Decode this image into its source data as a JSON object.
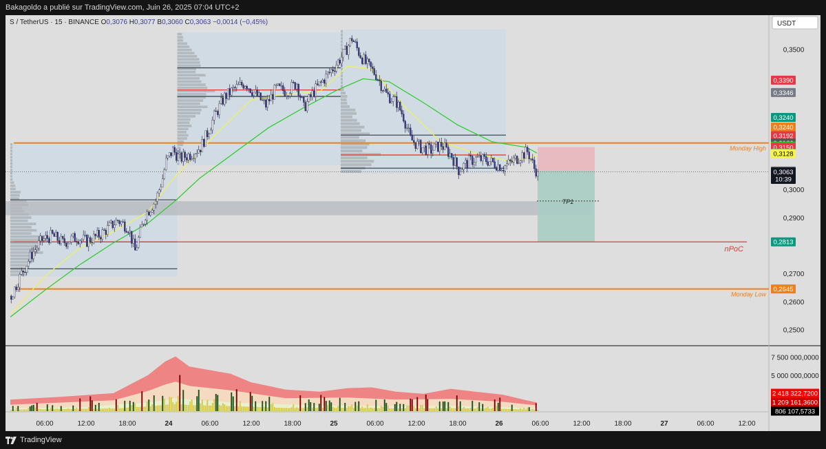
{
  "header": {
    "publisher_line": "Bakagoldo a publié sur TradingView.com, Juin 26, 2025 07:04 UTC+2"
  },
  "footer": {
    "brand": "TradingView"
  },
  "colors": {
    "background": "#dedede",
    "dark": "#141414",
    "orange": "#ef7f1a",
    "red": "#e53935",
    "green_line": "#33cc33",
    "yellow_line": "#f0ef66",
    "profile_box": "#cfdae3",
    "stop_zone": "#e9b7bd",
    "target_zone": "#a9cdc3"
  },
  "chart_data": {
    "type": "candlestick",
    "symbol_line": {
      "symbol": "S / TetherUS · 15 · BINANCE",
      "o_label": "O",
      "o_value": "0,3076",
      "h_label": "H",
      "h_value": "0,3077",
      "b_label": "B",
      "b_value": "0,3060",
      "c_label": "C",
      "c_value": "0,3063",
      "change": "−0,0014 (−0,45%)"
    },
    "currency_button": "USDT",
    "y_axis": {
      "ylim": [
        0.2445,
        0.3622
      ],
      "ticks": [
        {
          "value": 0.35,
          "label": "0,3500"
        },
        {
          "value": 0.3,
          "label": "0,3000"
        },
        {
          "value": 0.29,
          "label": "0,2900"
        },
        {
          "value": 0.27,
          "label": "0,2700"
        },
        {
          "value": 0.26,
          "label": "0,2600"
        },
        {
          "value": 0.25,
          "label": "0,2500"
        }
      ]
    },
    "price_labels": [
      {
        "value": 0.339,
        "label": "0,3390",
        "color": "#e53945"
      },
      {
        "value": 0.3346,
        "label": "0,3346",
        "color": "#787b86"
      },
      {
        "value": 0.324,
        "label": "0,3240",
        "color": "#089981",
        "offset": -7
      },
      {
        "value": 0.324,
        "label": "0,3240",
        "color": "#ef7f1a",
        "offset": 7
      },
      {
        "value": 0.3192,
        "label": "0,3192",
        "color": "#e53945"
      },
      {
        "value": 0.3166,
        "label": "0,3166",
        "color": "#555555"
      },
      {
        "value": 0.3155,
        "label": "0,3155",
        "color": "#22c322"
      },
      {
        "value": 0.315,
        "label": "0,3150",
        "color": "#e53945"
      },
      {
        "value": 0.3129,
        "label": "0,3129",
        "color": "#089981"
      },
      {
        "value": 0.3128,
        "label": "0,3128",
        "color": "#f5f542",
        "text_color": "#000000"
      },
      {
        "value": 0.3066,
        "label": "0,3066",
        "color": "#787b86"
      },
      {
        "value": 0.3063,
        "label": "0,3063",
        "color": "#131722",
        "countdown": "10:39"
      },
      {
        "value": 0.2813,
        "label": "0,2813",
        "color": "#089981"
      },
      {
        "value": 0.2645,
        "label": "0,2645",
        "color": "#ef7f1a"
      }
    ],
    "levels": [
      {
        "name": "Monday  High",
        "value": 0.3166,
        "color": "#ef7f1a"
      },
      {
        "name": "nPoC",
        "value": 0.2813,
        "color": "#e53935"
      },
      {
        "name": "Monday Low",
        "value": 0.2645,
        "color": "#ef7f1a"
      }
    ],
    "trade": {
      "entry": 0.3066,
      "stop": 0.3151,
      "target": 0.2813,
      "tp_label": "TP1",
      "tp_value": 0.2959
    },
    "support_zone": [
      0.2908,
      0.2958
    ],
    "profiles": [
      {
        "start": 0,
        "end": 97,
        "top": 0.3166,
        "bottom": 0.269,
        "vah": 0.2963,
        "poc": 0.2813,
        "val": 0.2717
      },
      {
        "start": 97,
        "end": 192,
        "top": 0.356,
        "bottom": 0.3086,
        "vah": 0.3434,
        "poc": 0.3355,
        "val": 0.3332
      },
      {
        "start": 192,
        "end": 288,
        "top": 0.357,
        "bottom": 0.3058,
        "vah": 0.3194,
        "poc": 0.3123,
        "val": 0.3076
      }
    ],
    "x_axis": {
      "range": [
        "2025-06-23T00:00",
        "2025-06-27T14:00"
      ],
      "ticks": [
        {
          "bar": 20,
          "label": "06:00"
        },
        {
          "bar": 44,
          "label": "12:00"
        },
        {
          "bar": 68,
          "label": "18:00"
        },
        {
          "bar": 92,
          "label": "24"
        },
        {
          "bar": 116,
          "label": "06:00"
        },
        {
          "bar": 140,
          "label": "12:00"
        },
        {
          "bar": 164,
          "label": "18:00"
        },
        {
          "bar": 188,
          "label": "25"
        },
        {
          "bar": 212,
          "label": "06:00"
        },
        {
          "bar": 236,
          "label": "12:00"
        },
        {
          "bar": 260,
          "label": "18:00"
        },
        {
          "bar": 284,
          "label": "26"
        },
        {
          "bar": 308,
          "label": "06:00"
        },
        {
          "bar": 332,
          "label": "12:00"
        },
        {
          "bar": 356,
          "label": "18:00"
        },
        {
          "bar": 380,
          "label": "27"
        },
        {
          "bar": 404,
          "label": "06:00"
        },
        {
          "bar": 428,
          "label": "12:00"
        }
      ]
    },
    "price_path": [
      [
        0,
        0.262
      ],
      [
        6,
        0.27
      ],
      [
        12,
        0.277
      ],
      [
        18,
        0.282
      ],
      [
        24,
        0.2835
      ],
      [
        30,
        0.281
      ],
      [
        38,
        0.283
      ],
      [
        44,
        0.2815
      ],
      [
        52,
        0.284
      ],
      [
        58,
        0.287
      ],
      [
        62,
        0.289
      ],
      [
        68,
        0.2865
      ],
      [
        72,
        0.278
      ],
      [
        78,
        0.291
      ],
      [
        84,
        0.296
      ],
      [
        88,
        0.304
      ],
      [
        90,
        0.31
      ],
      [
        94,
        0.314
      ],
      [
        98,
        0.311
      ],
      [
        104,
        0.3125
      ],
      [
        110,
        0.315
      ],
      [
        114,
        0.32
      ],
      [
        118,
        0.326
      ],
      [
        124,
        0.333
      ],
      [
        130,
        0.336
      ],
      [
        136,
        0.338
      ],
      [
        142,
        0.334
      ],
      [
        148,
        0.33
      ],
      [
        154,
        0.336
      ],
      [
        160,
        0.335
      ],
      [
        166,
        0.338
      ],
      [
        170,
        0.329
      ],
      [
        176,
        0.335
      ],
      [
        182,
        0.3395
      ],
      [
        188,
        0.344
      ],
      [
        194,
        0.349
      ],
      [
        198,
        0.354
      ],
      [
        202,
        0.349
      ],
      [
        206,
        0.345
      ],
      [
        212,
        0.341
      ],
      [
        218,
        0.334
      ],
      [
        224,
        0.331
      ],
      [
        228,
        0.326
      ],
      [
        232,
        0.318
      ],
      [
        238,
        0.315
      ],
      [
        244,
        0.314
      ],
      [
        250,
        0.316
      ],
      [
        256,
        0.312
      ],
      [
        260,
        0.307
      ],
      [
        266,
        0.31
      ],
      [
        270,
        0.311
      ],
      [
        276,
        0.3105
      ],
      [
        282,
        0.309
      ],
      [
        286,
        0.308
      ],
      [
        290,
        0.3095
      ],
      [
        296,
        0.312
      ],
      [
        300,
        0.3135
      ],
      [
        302,
        0.311
      ],
      [
        304,
        0.3075
      ],
      [
        306,
        0.3063
      ]
    ],
    "ema_short": [
      [
        0,
        0.2555
      ],
      [
        20,
        0.269
      ],
      [
        40,
        0.279
      ],
      [
        60,
        0.285
      ],
      [
        80,
        0.292
      ],
      [
        92,
        0.302
      ],
      [
        104,
        0.31
      ],
      [
        120,
        0.32
      ],
      [
        140,
        0.332
      ],
      [
        160,
        0.334
      ],
      [
        180,
        0.335
      ],
      [
        196,
        0.344
      ],
      [
        210,
        0.343
      ],
      [
        230,
        0.329
      ],
      [
        250,
        0.317
      ],
      [
        270,
        0.313
      ],
      [
        290,
        0.31
      ],
      [
        306,
        0.312
      ]
    ],
    "ema_long": [
      [
        0,
        0.2545
      ],
      [
        20,
        0.264
      ],
      [
        40,
        0.273
      ],
      [
        60,
        0.281
      ],
      [
        80,
        0.288
      ],
      [
        96,
        0.296
      ],
      [
        110,
        0.304
      ],
      [
        130,
        0.313
      ],
      [
        150,
        0.322
      ],
      [
        170,
        0.329
      ],
      [
        190,
        0.3355
      ],
      [
        205,
        0.3395
      ],
      [
        220,
        0.3385
      ],
      [
        240,
        0.331
      ],
      [
        260,
        0.323
      ],
      [
        280,
        0.317
      ],
      [
        300,
        0.315
      ],
      [
        306,
        0.313
      ]
    ],
    "volume": {
      "ylim": [
        0,
        9000000000
      ],
      "ticks": [
        {
          "value": 7500000000,
          "label": "7 500 000,0000"
        },
        {
          "value": 5000000000,
          "label": "5 000 000,0000"
        }
      ],
      "band_outer": [
        [
          0,
          1600000000
        ],
        [
          30,
          2000000000
        ],
        [
          60,
          2500000000
        ],
        [
          80,
          5000000000
        ],
        [
          90,
          6900000000
        ],
        [
          96,
          7600000000
        ],
        [
          104,
          6200000000
        ],
        [
          116,
          5700000000
        ],
        [
          128,
          5200000000
        ],
        [
          140,
          4000000000
        ],
        [
          160,
          3000000000
        ],
        [
          180,
          2700000000
        ],
        [
          196,
          3200000000
        ],
        [
          210,
          3300000000
        ],
        [
          224,
          2700000000
        ],
        [
          240,
          2400000000
        ],
        [
          256,
          3100000000
        ],
        [
          270,
          2700000000
        ],
        [
          286,
          2300000000
        ],
        [
          300,
          1500000000
        ],
        [
          306,
          1200000000
        ]
      ],
      "band_mid": [
        [
          0,
          900000000
        ],
        [
          30,
          1200000000
        ],
        [
          60,
          1500000000
        ],
        [
          80,
          2800000000
        ],
        [
          90,
          3700000000
        ],
        [
          96,
          4100000000
        ],
        [
          104,
          3500000000
        ],
        [
          128,
          2900000000
        ],
        [
          160,
          1800000000
        ],
        [
          196,
          1900000000
        ],
        [
          224,
          1600000000
        ],
        [
          256,
          1700000000
        ],
        [
          286,
          1300000000
        ],
        [
          306,
          800000000
        ]
      ],
      "band_inner": [
        [
          0,
          400000000
        ],
        [
          40,
          550000000
        ],
        [
          80,
          1200000000
        ],
        [
          96,
          1800000000
        ],
        [
          128,
          1200000000
        ],
        [
          180,
          800000000
        ],
        [
          220,
          700000000
        ],
        [
          260,
          750000000
        ],
        [
          306,
          400000000
        ]
      ],
      "labels": [
        {
          "label": "2 418 322,7200",
          "color": "#ff0000"
        },
        {
          "label": "1 209 161,3600",
          "color": "#cc0000"
        },
        {
          "label": "806 107,5733",
          "color": "#000000"
        }
      ]
    }
  }
}
